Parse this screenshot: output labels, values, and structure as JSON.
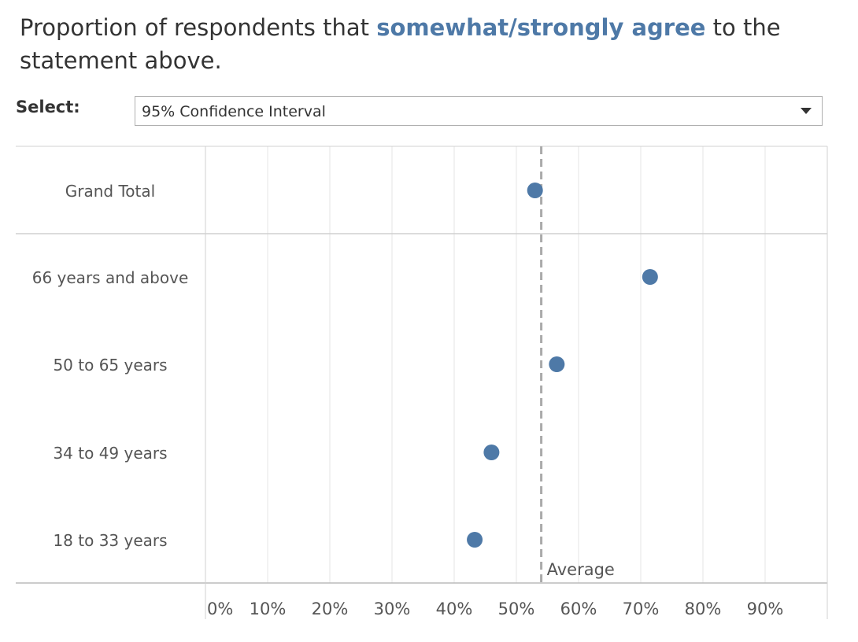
{
  "title": {
    "prefix": "Proportion of respondents that ",
    "highlight": "somewhat/strongly agree",
    "suffix": " to the statement above."
  },
  "filter": {
    "label": "Select:",
    "value": "95% Confidence Interval"
  },
  "colors": {
    "accent": "#4e79a7",
    "text": "#555555",
    "gridline": "#e6e6e6",
    "reference_line": "#aaaaaa"
  },
  "chart_data": {
    "type": "scatter",
    "categories": [
      "Grand Total",
      "66 years and above",
      "50 to 65 years",
      "34 to 49 years",
      "18 to 33 years"
    ],
    "values": [
      0.53,
      0.715,
      0.565,
      0.46,
      0.433
    ],
    "x_ticks": [
      "0%",
      "10%",
      "20%",
      "30%",
      "40%",
      "50%",
      "60%",
      "70%",
      "80%",
      "90%"
    ],
    "xlim": [
      0,
      1.0
    ],
    "reference_line": {
      "label": "Average",
      "value": 0.54
    },
    "grid": true
  }
}
